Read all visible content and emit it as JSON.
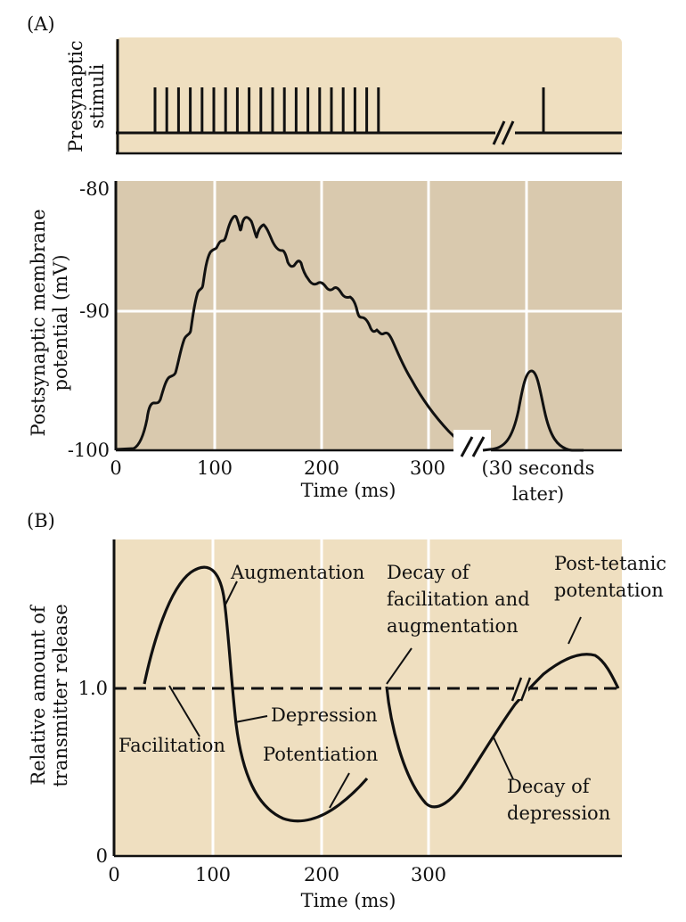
{
  "colors": {
    "panel_light": "#efdfc0",
    "panel_dark": "#d9c9ae",
    "gridline": "#ffffff",
    "trace": "#111111"
  },
  "panel_a": {
    "tag": "(A)",
    "stimuli_ylabel_line1": "Presynaptic",
    "stimuli_ylabel_line2": "stimuli",
    "ylabel_line1": "Postsynaptic membrane",
    "ylabel_line2": "potential (mV)",
    "yticks": [
      "-80",
      "-90",
      "-100"
    ],
    "xticks": [
      "0",
      "100",
      "200",
      "300"
    ],
    "xlabel": "Time (ms)",
    "later_line1": "(30 seconds",
    "later_line2": "later)"
  },
  "panel_b": {
    "tag": "(B)",
    "ylabel_line1": "Relative amount of",
    "ylabel_line2": "transmitter release",
    "yticks": [
      "1.0",
      "0"
    ],
    "xticks": [
      "0",
      "100",
      "200",
      "300"
    ],
    "xlabel": "Time (ms)",
    "annotations": {
      "augmentation": "Augmentation",
      "decay_facil_1": "Decay of",
      "decay_facil_2": "facilitation and",
      "decay_facil_3": "augmentation",
      "post_tetanic_1": "Post-tetanic",
      "post_tetanic_2": "potentation",
      "depression": "Depression",
      "facilitation": "Facilitation",
      "potentiation": "Potentiation",
      "decay_depr_1": "Decay of",
      "decay_depr_2": "depression"
    }
  }
}
